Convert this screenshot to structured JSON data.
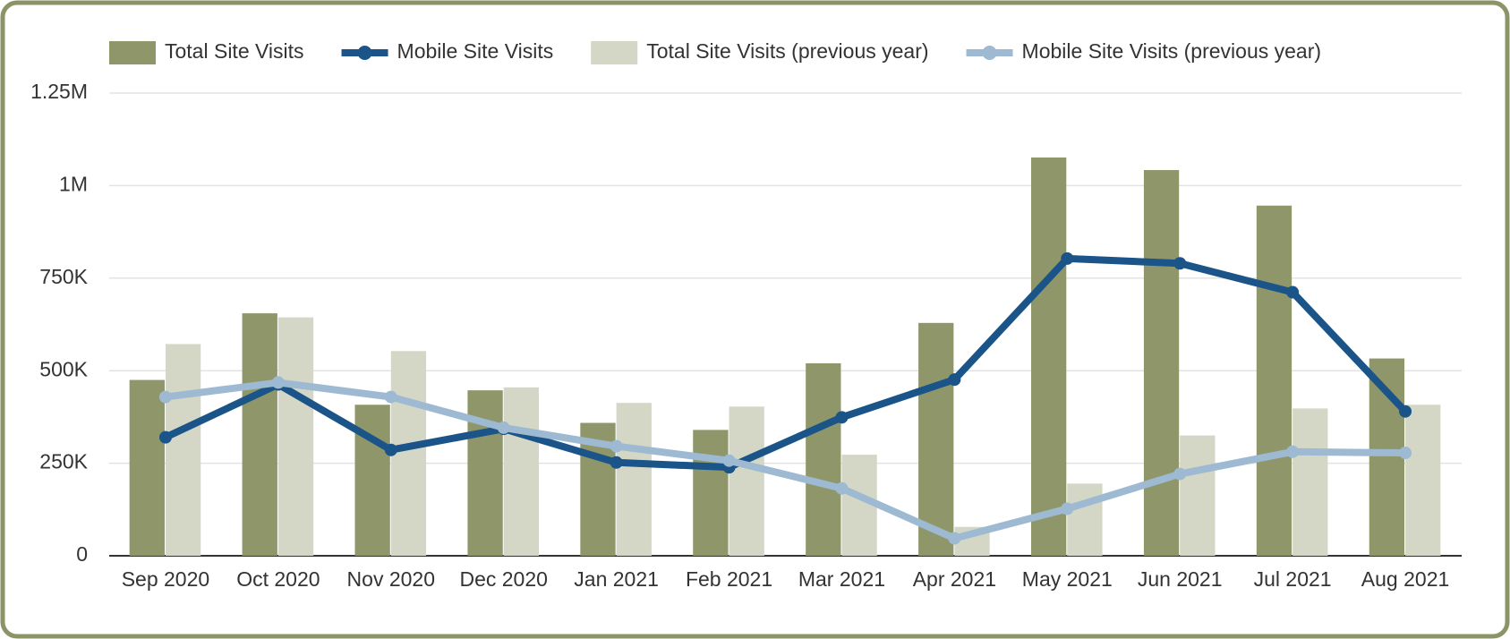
{
  "chart_data": {
    "type": "bar-line",
    "categories": [
      "Sep 2020",
      "Oct 2020",
      "Nov 2020",
      "Dec 2020",
      "Jan 2021",
      "Feb 2021",
      "Mar 2021",
      "Apr 2021",
      "May 2021",
      "Jun 2021",
      "Jul 2021",
      "Aug 2021"
    ],
    "series": [
      {
        "name": "Total Site Visits",
        "type": "bar",
        "color": "#8f966a",
        "values": [
          475000,
          655000,
          408000,
          447000,
          359000,
          340000,
          520000,
          629000,
          1076000,
          1042000,
          946000,
          533000
        ]
      },
      {
        "name": "Mobile Site Visits",
        "type": "line",
        "color": "#1a5488",
        "values": [
          320000,
          463000,
          286000,
          343000,
          252000,
          239000,
          374000,
          476000,
          803000,
          790000,
          712000,
          390000
        ]
      },
      {
        "name": "Total Site Visits (previous year)",
        "type": "bar",
        "color": "#d5d7c6",
        "values": [
          572000,
          644000,
          553000,
          455000,
          413000,
          403000,
          273000,
          78000,
          195000,
          325000,
          398000,
          408000
        ]
      },
      {
        "name": "Mobile Site Visits (previous year)",
        "type": "line",
        "color": "#9dbad2",
        "values": [
          429000,
          468000,
          429000,
          346000,
          296000,
          257000,
          182000,
          47000,
          127000,
          221000,
          281000,
          278000
        ]
      }
    ],
    "ylim": [
      0,
      1250000
    ],
    "yticks": [
      0,
      {
        "value": 250000,
        "label": "250K"
      },
      {
        "value": 500000,
        "label": "500K"
      },
      {
        "value": 750000,
        "label": "750K"
      },
      {
        "value": 1000000,
        "label": "1M"
      },
      {
        "value": 1250000,
        "label": "1.25M"
      }
    ],
    "grid": true,
    "legend": "top"
  }
}
